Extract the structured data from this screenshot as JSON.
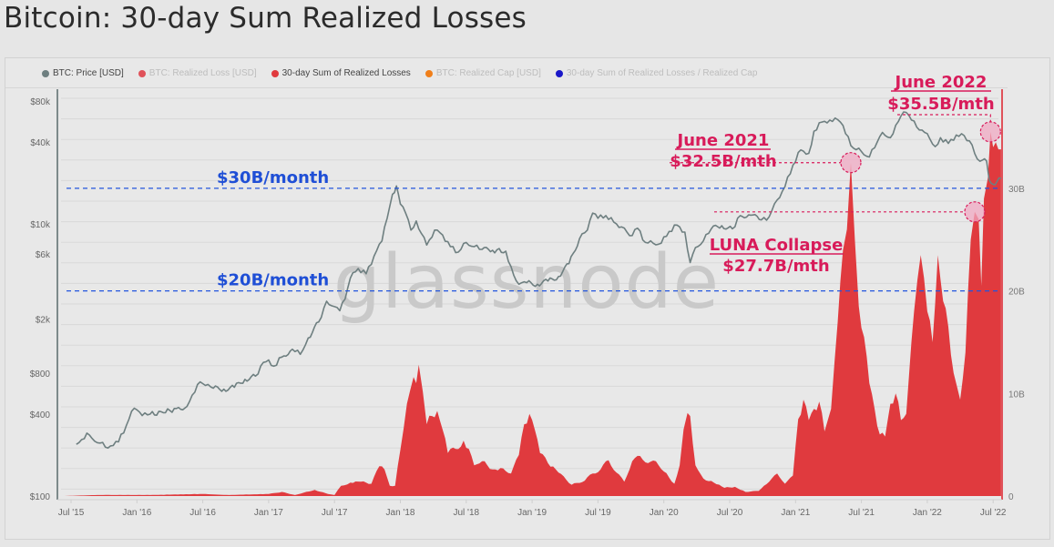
{
  "page": {
    "title": "Bitcoin: 30-day Sum Realized Losses"
  },
  "legend": {
    "items": [
      {
        "label": "BTC: Price [USD]",
        "color": "#6e7f80",
        "active": true
      },
      {
        "label": "BTC: Realized Loss [USD]",
        "color": "#e0525a",
        "active": false
      },
      {
        "label": "30-day Sum of Realized Losses",
        "color": "#e03a3e",
        "active": true
      },
      {
        "label": "BTC: Realized Cap [USD]",
        "color": "#f07f1a",
        "active": false
      },
      {
        "label": "30-day Sum of Realized Losses / Realized Cap",
        "color": "#1a17c8",
        "active": false
      }
    ]
  },
  "colors": {
    "price_line": "#6e7f80",
    "losses_fill": "#e03a3e",
    "threshold_line": "#2255dd",
    "threshold_text": "#1f4fd6",
    "annotation": "#d81b5a",
    "annotation_circle_fill": "#f0a9c3",
    "right_axis": "#e0525a"
  },
  "watermark": "glassnode",
  "chart_data": {
    "type": "line+area",
    "title": "Bitcoin: 30-day Sum Realized Losses",
    "x_ticks": [
      "Jul '15",
      "Jan '16",
      "Jul '16",
      "Jan '17",
      "Jul '17",
      "Jan '18",
      "Jul '18",
      "Jan '19",
      "Jul '19",
      "Jan '20",
      "Jul '20",
      "Jan '21",
      "Jul '21",
      "Jan '22",
      "Jul '22"
    ],
    "x_range": [
      2015.45,
      2022.6
    ],
    "left_axis": {
      "label": "BTC: Price [USD]",
      "scale": "log",
      "range": [
        100,
        100000
      ],
      "tick_labels": [
        "$100",
        "$400",
        "$800",
        "$2k",
        "$6k",
        "$10k",
        "$40k",
        "$80k"
      ],
      "tick_values": [
        100,
        400,
        800,
        2000,
        6000,
        10000,
        40000,
        80000
      ]
    },
    "right_axis": {
      "label": "30-day Sum of Realized Losses",
      "scale": "linear",
      "range": [
        0,
        40
      ],
      "unit": "B USD",
      "tick_labels": [
        "0",
        "10B",
        "20B",
        "30B"
      ],
      "tick_values": [
        0,
        10,
        20,
        30
      ]
    },
    "series": [
      {
        "name": "BTC: Price [USD]",
        "axis": "left",
        "type": "line",
        "points": [
          [
            2015.54,
            240
          ],
          [
            2015.58,
            260
          ],
          [
            2015.62,
            290
          ],
          [
            2015.66,
            265
          ],
          [
            2015.72,
            245
          ],
          [
            2015.78,
            225
          ],
          [
            2015.82,
            235
          ],
          [
            2015.86,
            250
          ],
          [
            2015.92,
            330
          ],
          [
            2015.96,
            420
          ],
          [
            2016.0,
            430
          ],
          [
            2016.04,
            390
          ],
          [
            2016.1,
            400
          ],
          [
            2016.2,
            410
          ],
          [
            2016.3,
            440
          ],
          [
            2016.38,
            455
          ],
          [
            2016.44,
            580
          ],
          [
            2016.48,
            690
          ],
          [
            2016.52,
            650
          ],
          [
            2016.58,
            620
          ],
          [
            2016.66,
            610
          ],
          [
            2016.74,
            630
          ],
          [
            2016.82,
            720
          ],
          [
            2016.9,
            760
          ],
          [
            2016.96,
            960
          ],
          [
            2017.0,
            1000
          ],
          [
            2017.04,
            900
          ],
          [
            2017.1,
            1050
          ],
          [
            2017.18,
            1200
          ],
          [
            2017.24,
            1100
          ],
          [
            2017.3,
            1450
          ],
          [
            2017.38,
            1900
          ],
          [
            2017.44,
            2700
          ],
          [
            2017.48,
            2500
          ],
          [
            2017.54,
            2300
          ],
          [
            2017.58,
            2800
          ],
          [
            2017.62,
            4000
          ],
          [
            2017.68,
            4700
          ],
          [
            2017.74,
            4300
          ],
          [
            2017.8,
            5800
          ],
          [
            2017.86,
            7500
          ],
          [
            2017.9,
            11000
          ],
          [
            2017.94,
            16500
          ],
          [
            2017.97,
            19000
          ],
          [
            2018.0,
            14000
          ],
          [
            2018.04,
            12000
          ],
          [
            2018.08,
            9000
          ],
          [
            2018.12,
            10500
          ],
          [
            2018.16,
            8500
          ],
          [
            2018.2,
            7000
          ],
          [
            2018.26,
            9000
          ],
          [
            2018.32,
            8300
          ],
          [
            2018.38,
            6800
          ],
          [
            2018.44,
            6200
          ],
          [
            2018.5,
            7300
          ],
          [
            2018.56,
            6800
          ],
          [
            2018.62,
            6500
          ],
          [
            2018.7,
            6400
          ],
          [
            2018.8,
            6300
          ],
          [
            2018.86,
            4200
          ],
          [
            2018.9,
            3600
          ],
          [
            2018.96,
            3700
          ],
          [
            2019.04,
            3600
          ],
          [
            2019.12,
            3800
          ],
          [
            2019.2,
            4100
          ],
          [
            2019.28,
            5100
          ],
          [
            2019.36,
            7800
          ],
          [
            2019.42,
            9000
          ],
          [
            2019.46,
            12000
          ],
          [
            2019.5,
            11000
          ],
          [
            2019.56,
            11500
          ],
          [
            2019.62,
            10300
          ],
          [
            2019.68,
            9500
          ],
          [
            2019.74,
            8200
          ],
          [
            2019.8,
            9300
          ],
          [
            2019.86,
            7300
          ],
          [
            2019.92,
            7200
          ],
          [
            2019.98,
            7200
          ],
          [
            2020.04,
            8800
          ],
          [
            2020.1,
            9800
          ],
          [
            2020.16,
            8700
          ],
          [
            2020.2,
            5200
          ],
          [
            2020.24,
            6700
          ],
          [
            2020.3,
            7500
          ],
          [
            2020.36,
            9200
          ],
          [
            2020.44,
            9700
          ],
          [
            2020.52,
            9200
          ],
          [
            2020.58,
            11500
          ],
          [
            2020.66,
            11600
          ],
          [
            2020.74,
            10700
          ],
          [
            2020.8,
            11300
          ],
          [
            2020.86,
            15000
          ],
          [
            2020.92,
            18800
          ],
          [
            2020.98,
            27000
          ],
          [
            2021.04,
            35000
          ],
          [
            2021.1,
            33000
          ],
          [
            2021.14,
            48000
          ],
          [
            2021.2,
            56000
          ],
          [
            2021.26,
            58000
          ],
          [
            2021.3,
            60000
          ],
          [
            2021.34,
            56000
          ],
          [
            2021.38,
            46000
          ],
          [
            2021.44,
            36000
          ],
          [
            2021.5,
            34000
          ],
          [
            2021.56,
            31000
          ],
          [
            2021.62,
            40000
          ],
          [
            2021.66,
            47000
          ],
          [
            2021.72,
            43000
          ],
          [
            2021.76,
            53000
          ],
          [
            2021.8,
            62000
          ],
          [
            2021.84,
            66000
          ],
          [
            2021.88,
            58000
          ],
          [
            2021.94,
            49000
          ],
          [
            2021.98,
            47000
          ],
          [
            2022.02,
            42000
          ],
          [
            2022.06,
            37000
          ],
          [
            2022.1,
            43000
          ],
          [
            2022.16,
            39000
          ],
          [
            2022.22,
            45000
          ],
          [
            2022.26,
            46000
          ],
          [
            2022.3,
            41000
          ],
          [
            2022.34,
            38000
          ],
          [
            2022.38,
            30000
          ],
          [
            2022.42,
            29500
          ],
          [
            2022.45,
            29000
          ],
          [
            2022.47,
            21000
          ],
          [
            2022.5,
            19500
          ],
          [
            2022.53,
            20500
          ],
          [
            2022.56,
            21500
          ]
        ]
      },
      {
        "name": "30-day Sum of Realized Losses",
        "axis": "right",
        "type": "area",
        "unit": "B USD",
        "points": [
          [
            2015.45,
            0
          ],
          [
            2015.7,
            0.1
          ],
          [
            2015.85,
            0.1
          ],
          [
            2016.1,
            0.1
          ],
          [
            2016.5,
            0.2
          ],
          [
            2016.7,
            0.1
          ],
          [
            2017.0,
            0.2
          ],
          [
            2017.1,
            0.4
          ],
          [
            2017.2,
            0.1
          ],
          [
            2017.35,
            0.6
          ],
          [
            2017.45,
            0.2
          ],
          [
            2017.5,
            0.1
          ],
          [
            2017.55,
            1.0
          ],
          [
            2017.62,
            1.3
          ],
          [
            2017.7,
            1.4
          ],
          [
            2017.78,
            1.2
          ],
          [
            2017.84,
            2.9
          ],
          [
            2017.88,
            2.6
          ],
          [
            2017.92,
            1.0
          ],
          [
            2017.96,
            1.0
          ],
          [
            2018.0,
            4.5
          ],
          [
            2018.05,
            9.0
          ],
          [
            2018.1,
            11.6
          ],
          [
            2018.12,
            11.0
          ],
          [
            2018.14,
            12.8
          ],
          [
            2018.17,
            10.2
          ],
          [
            2018.2,
            7.0
          ],
          [
            2018.24,
            7.8
          ],
          [
            2018.28,
            8.3
          ],
          [
            2018.32,
            6.5
          ],
          [
            2018.36,
            4.2
          ],
          [
            2018.42,
            4.6
          ],
          [
            2018.48,
            5.4
          ],
          [
            2018.52,
            4.6
          ],
          [
            2018.56,
            3.0
          ],
          [
            2018.62,
            3.4
          ],
          [
            2018.7,
            2.6
          ],
          [
            2018.78,
            2.7
          ],
          [
            2018.84,
            2.2
          ],
          [
            2018.9,
            4.0
          ],
          [
            2018.94,
            7.0
          ],
          [
            2018.98,
            8.0
          ],
          [
            2019.02,
            6.5
          ],
          [
            2019.06,
            4.2
          ],
          [
            2019.12,
            3.2
          ],
          [
            2019.2,
            2.3
          ],
          [
            2019.3,
            1.1
          ],
          [
            2019.4,
            1.5
          ],
          [
            2019.46,
            2.2
          ],
          [
            2019.52,
            2.6
          ],
          [
            2019.58,
            3.5
          ],
          [
            2019.64,
            2.3
          ],
          [
            2019.7,
            1.4
          ],
          [
            2019.76,
            3.4
          ],
          [
            2019.82,
            3.9
          ],
          [
            2019.88,
            3.2
          ],
          [
            2019.94,
            3.4
          ],
          [
            2020.0,
            2.4
          ],
          [
            2020.08,
            1.2
          ],
          [
            2020.12,
            3.0
          ],
          [
            2020.15,
            6.5
          ],
          [
            2020.18,
            8.1
          ],
          [
            2020.2,
            7.8
          ],
          [
            2020.24,
            3.0
          ],
          [
            2020.3,
            1.7
          ],
          [
            2020.38,
            1.3
          ],
          [
            2020.46,
            0.8
          ],
          [
            2020.54,
            0.9
          ],
          [
            2020.62,
            0.4
          ],
          [
            2020.72,
            0.5
          ],
          [
            2020.8,
            1.4
          ],
          [
            2020.86,
            2.2
          ],
          [
            2020.92,
            1.2
          ],
          [
            2020.98,
            2.0
          ],
          [
            2021.02,
            7.5
          ],
          [
            2021.06,
            9.4
          ],
          [
            2021.1,
            7.4
          ],
          [
            2021.14,
            8.5
          ],
          [
            2021.18,
            9.2
          ],
          [
            2021.22,
            6.3
          ],
          [
            2021.27,
            8.5
          ],
          [
            2021.32,
            17.0
          ],
          [
            2021.36,
            24.0
          ],
          [
            2021.39,
            26.0
          ],
          [
            2021.42,
            32.5
          ],
          [
            2021.45,
            25.0
          ],
          [
            2021.48,
            18.5
          ],
          [
            2021.52,
            15.5
          ],
          [
            2021.56,
            11.0
          ],
          [
            2021.6,
            8.5
          ],
          [
            2021.64,
            6.0
          ],
          [
            2021.68,
            5.8
          ],
          [
            2021.72,
            9.0
          ],
          [
            2021.76,
            10.0
          ],
          [
            2021.8,
            7.4
          ],
          [
            2021.84,
            8.0
          ],
          [
            2021.9,
            18.0
          ],
          [
            2021.95,
            23.5
          ],
          [
            2022.0,
            18.0
          ],
          [
            2022.04,
            15.0
          ],
          [
            2022.08,
            23.5
          ],
          [
            2022.12,
            19.0
          ],
          [
            2022.16,
            16.5
          ],
          [
            2022.2,
            12.0
          ],
          [
            2022.25,
            9.4
          ],
          [
            2022.29,
            14.0
          ],
          [
            2022.33,
            25.0
          ],
          [
            2022.36,
            27.7
          ],
          [
            2022.39,
            27.0
          ],
          [
            2022.41,
            20.5
          ],
          [
            2022.43,
            29.0
          ],
          [
            2022.46,
            31.0
          ],
          [
            2022.48,
            35.5
          ],
          [
            2022.5,
            34.0
          ],
          [
            2022.52,
            34.5
          ],
          [
            2022.54,
            33.8
          ],
          [
            2022.56,
            33.8
          ]
        ]
      }
    ],
    "reference_lines": [
      {
        "value": 30,
        "axis": "right",
        "label": "$30B/month",
        "style": "dashed"
      },
      {
        "value": 20,
        "axis": "right",
        "label": "$20B/month",
        "style": "dashed"
      }
    ],
    "annotations": [
      {
        "title": "June 2021",
        "value_label": "$32.5B/mth",
        "x": 2021.42,
        "value": 32.5
      },
      {
        "title": "LUNA Collapse",
        "value_label": "$27.7B/mth",
        "x": 2022.36,
        "value": 27.7
      },
      {
        "title": "June 2022",
        "value_label": "$35.5B/mth",
        "x": 2022.48,
        "value": 35.5
      }
    ],
    "legend_position": "top-left",
    "grid": true
  }
}
